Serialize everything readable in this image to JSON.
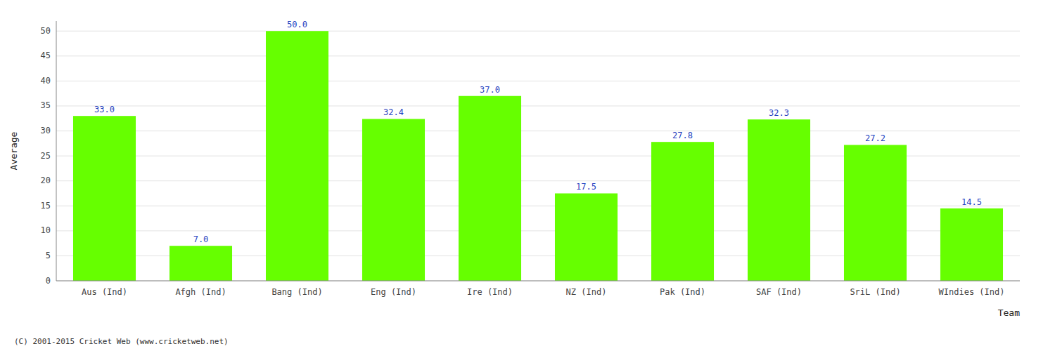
{
  "chart_data": {
    "type": "bar",
    "categories": [
      "Aus (Ind)",
      "Afgh (Ind)",
      "Bang (Ind)",
      "Eng (Ind)",
      "Ire (Ind)",
      "NZ (Ind)",
      "Pak (Ind)",
      "SAF (Ind)",
      "SriL (Ind)",
      "WIndies (Ind)"
    ],
    "values": [
      33.0,
      7.0,
      50.0,
      32.4,
      37.0,
      17.5,
      27.8,
      32.3,
      27.2,
      14.5
    ],
    "value_labels": [
      "33.0",
      "7.0",
      "50.0",
      "32.4",
      "37.0",
      "17.5",
      "27.8",
      "32.3",
      "27.2",
      "14.5"
    ],
    "data_labels": true,
    "color": "#66ff00",
    "xlabel": "Team",
    "ylabel": "Average",
    "ylim": [
      0,
      52
    ],
    "yticks": [
      0,
      5,
      10,
      15,
      20,
      25,
      30,
      35,
      40,
      45,
      50
    ],
    "grid": true,
    "annotations": [
      "(C) 2001-2015 Cricket Web (www.cricketweb.net)"
    ]
  }
}
